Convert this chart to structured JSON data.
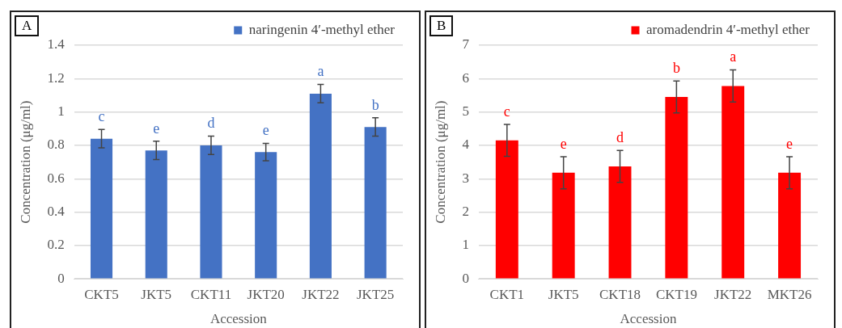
{
  "chart_data": [
    {
      "type": "bar",
      "title": "A",
      "xlabel": "Accession",
      "ylabel": "Concentration (μg/ml)",
      "categories": [
        "CKT5",
        "JKT5",
        "CKT11",
        "JKT20",
        "JKT22",
        "JKT25"
      ],
      "series": [
        {
          "name": "naringenin 4′-methyl ether",
          "color": "#4472c4",
          "values": [
            0.84,
            0.77,
            0.8,
            0.76,
            1.11,
            0.91
          ],
          "errors": [
            0.055,
            0.055,
            0.055,
            0.052,
            0.055,
            0.055
          ],
          "value_labels": [
            "c",
            "e",
            "d",
            "e",
            "a",
            "b"
          ]
        }
      ],
      "ylim": [
        0,
        1.4
      ],
      "yticks": [
        0,
        0.2,
        0.4,
        0.6,
        0.8,
        1,
        1.2,
        1.4
      ],
      "grid": "y",
      "legend": "top right"
    },
    {
      "type": "bar",
      "title": "B",
      "xlabel": "Accession",
      "ylabel": "Concentration (μg/ml)",
      "categories": [
        "CKT1",
        "JKT5",
        "CKT18",
        "CKT19",
        "JKT22",
        "MKT26"
      ],
      "series": [
        {
          "name": "aromadendrin 4′-methyl ether",
          "color": "#ff0000",
          "values": [
            4.15,
            3.18,
            3.37,
            5.45,
            5.78,
            3.18
          ],
          "errors": [
            0.48,
            0.48,
            0.48,
            0.48,
            0.48,
            0.48
          ],
          "value_labels": [
            "c",
            "e",
            "d",
            "b",
            "a",
            "e"
          ]
        }
      ],
      "ylim": [
        0,
        7
      ],
      "yticks": [
        0,
        1,
        2,
        3,
        4,
        5,
        6,
        7
      ],
      "grid": "y",
      "legend": "top right"
    }
  ]
}
